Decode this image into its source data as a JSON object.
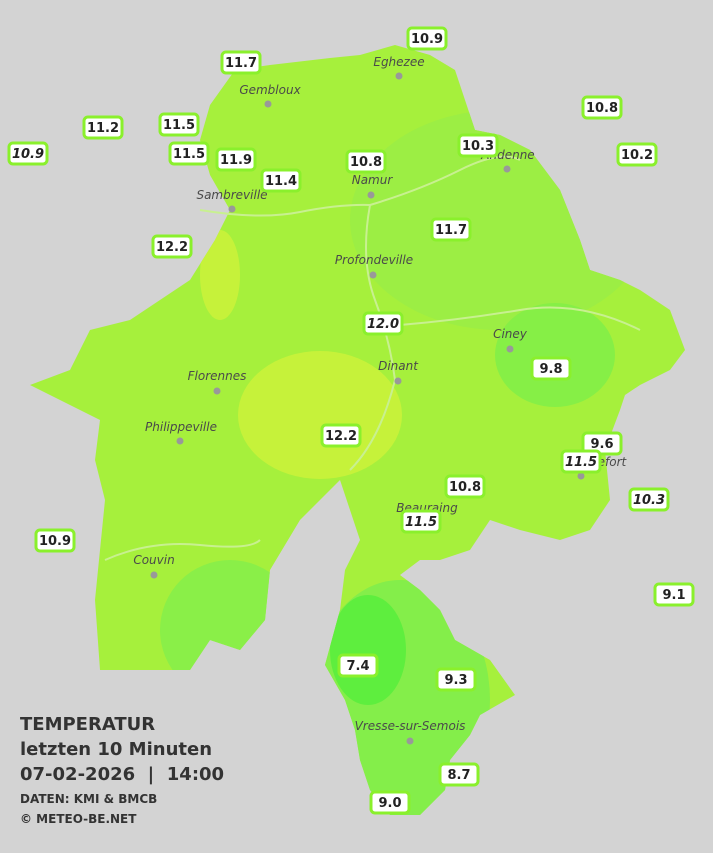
{
  "stations": [
    "11.7",
    "10.9",
    "10.8",
    "11.2",
    "11.5",
    "10.9",
    "11.5",
    "11.9",
    "10.3",
    "10.2",
    "10.8",
    "11.4",
    "11.7",
    "12.2",
    "12.0",
    "9.8",
    "12.2",
    "9.6",
    "11.5",
    "10.8",
    "10.3",
    "11.5",
    "10.9",
    "9.1",
    "7.4",
    "9.3",
    "8.7",
    "9.0"
  ],
  "towns": [
    "Eghezee",
    "Gembloux",
    "Andenne",
    "Namur",
    "Sambreville",
    "Profondeville",
    "Ciney",
    "Dinant",
    "Florennes",
    "Philippeville",
    "Beauraing",
    "Rochefort",
    "Couvin",
    "Vresse-sur-Semois"
  ],
  "legend": {
    "title": "TEMPERATUR",
    "subtitle": "letzten 10 Minuten",
    "datetime": "07-02-2026  |  14:00",
    "source": "DATEN: KMI & BMCB",
    "copyright": "© METEO-BE.NET"
  }
}
